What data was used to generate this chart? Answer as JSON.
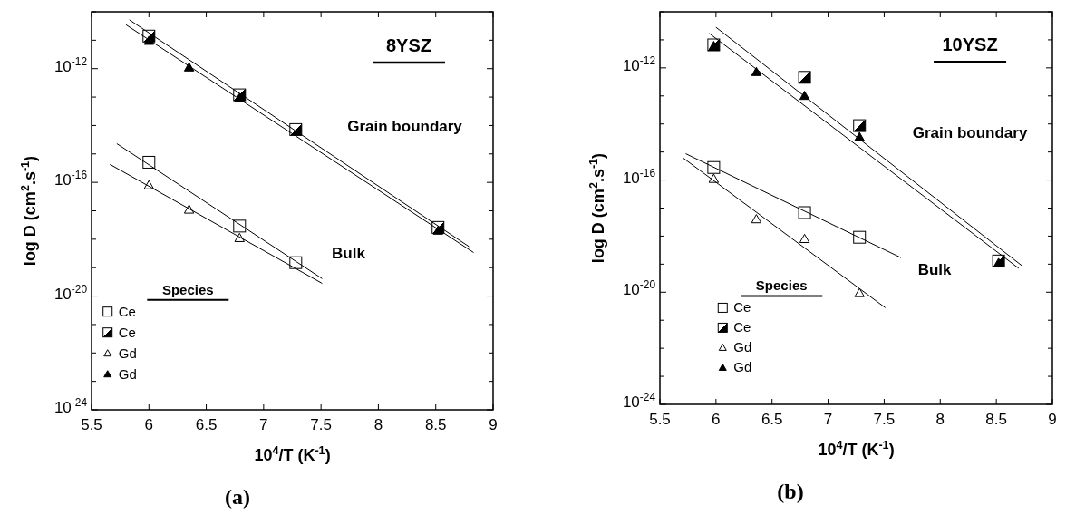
{
  "chart_data": [
    {
      "type": "scatter",
      "xlabel": "10$^{4}$/T (K$^{-1}$)",
      "ylabel": "log D (cm$^{2}$.s$^{-1}$)",
      "log": "y",
      "xlim": [
        5.5,
        9
      ],
      "xticks": [
        5.5,
        6,
        6.5,
        7,
        7.5,
        8,
        8.5,
        9
      ],
      "ylim": [
        1e-24,
        1e-10
      ],
      "yticks": [
        {
          "value": 1e-24,
          "label": "10$^{-24}$"
        },
        {
          "value": 1e-23,
          "label": null
        },
        {
          "value": 1e-22,
          "label": null
        },
        {
          "value": 1e-21,
          "label": null
        },
        {
          "value": 1e-20,
          "label": "10$^{-20}$"
        },
        {
          "value": 1e-19,
          "label": null
        },
        {
          "value": 1e-18,
          "label": null
        },
        {
          "value": 1e-17,
          "label": null
        },
        {
          "value": 1e-16,
          "label": "10$^{-16}$"
        },
        {
          "value": 1e-15,
          "label": null
        },
        {
          "value": 1e-14,
          "label": null
        },
        {
          "value": 1e-13,
          "label": null
        },
        {
          "value": 1e-12,
          "label": "10$^{-12}$"
        },
        {
          "value": 1e-11,
          "label": null
        },
        {
          "value": 1e-10,
          "label": null
        }
      ],
      "legend": "bottom left",
      "legend_title": "Species",
      "grid": false,
      "annotations": [
        "8YSZ",
        "Grain boundary",
        "Bulk",
        "(a)"
      ],
      "series": [
        {
          "name": "Ce",
          "color": "#ffffff",
          "marker": "square",
          "x": [
            6.0,
            6.79,
            7.28
          ],
          "values": [
            5.1e-16,
            2.9e-18,
            1.5e-19
          ]
        },
        {
          "name": "Ce",
          "color": "#000000",
          "marker": "square",
          "x": [
            6.0,
            6.79,
            7.28,
            8.52
          ],
          "values": [
            1.4e-11,
            1.2e-13,
            7.2e-15,
            2.6e-18
          ]
        },
        {
          "name": "Gd",
          "color": "#ffffff",
          "marker": "triangle",
          "x": [
            6.0,
            6.35,
            6.79
          ],
          "values": [
            7.9e-17,
            1.1e-17,
            1.1e-18
          ]
        },
        {
          "name": "Gd",
          "color": "#000000",
          "marker": "triangle",
          "x": [
            6.0,
            6.35,
            6.79,
            8.52
          ],
          "values": [
            9.5e-12,
            1.1e-12,
            9.3e-14,
            2e-18
          ]
        },
        {
          "type": "line",
          "color": "#000000",
          "marker": "none",
          "x": [
            5.83,
            8.79
          ],
          "values": [
            5.2e-11,
            5.5e-19
          ]
        },
        {
          "type": "line",
          "color": "#000000",
          "marker": "none",
          "x": [
            5.8,
            8.83
          ],
          "values": [
            3.5e-11,
            3.4e-19
          ]
        },
        {
          "type": "line",
          "color": "#000000",
          "marker": "none",
          "x": [
            5.72,
            7.51
          ],
          "values": [
            2.3e-15,
            4.1e-20
          ]
        },
        {
          "type": "line",
          "color": "#000000",
          "marker": "none",
          "x": [
            5.66,
            7.51
          ],
          "values": [
            4.3e-16,
            2.8e-20
          ]
        }
      ]
    },
    {
      "type": "scatter",
      "xlabel": "10$^{4}$/T (K$^{-1}$)",
      "ylabel": "log D (cm$^{2}$.s$^{-1}$)",
      "log": "y",
      "xlim": [
        5.5,
        9
      ],
      "xticks": [
        5.5,
        6,
        6.5,
        7,
        7.5,
        8,
        8.5,
        9
      ],
      "ylim": [
        1e-24,
        1e-10
      ],
      "yticks": [
        {
          "value": 1e-24,
          "label": "10$^{-24}$"
        },
        {
          "value": 1e-23,
          "label": null
        },
        {
          "value": 1e-22,
          "label": null
        },
        {
          "value": 1e-21,
          "label": null
        },
        {
          "value": 1e-20,
          "label": "10$^{-20}$"
        },
        {
          "value": 1e-19,
          "label": null
        },
        {
          "value": 1e-18,
          "label": null
        },
        {
          "value": 1e-17,
          "label": null
        },
        {
          "value": 1e-16,
          "label": "10$^{-16}$"
        },
        {
          "value": 1e-15,
          "label": null
        },
        {
          "value": 1e-14,
          "label": null
        },
        {
          "value": 1e-13,
          "label": null
        },
        {
          "value": 1e-12,
          "label": "10$^{-12}$"
        },
        {
          "value": 1e-11,
          "label": null
        },
        {
          "value": 1e-10,
          "label": null
        }
      ],
      "legend": "bottom left",
      "legend_title": "Species",
      "grid": false,
      "annotations": [
        "10YSZ",
        "Grain boundary",
        "Bulk",
        "(b)"
      ],
      "series": [
        {
          "name": "Ce",
          "color": "#ffffff",
          "marker": "square",
          "x": [
            5.98,
            6.79,
            7.28
          ],
          "values": [
            2.8e-16,
            6.9e-18,
            9.1e-19
          ]
        },
        {
          "name": "Ce",
          "color": "#000000",
          "marker": "square",
          "x": [
            5.98,
            6.79,
            7.28,
            8.52
          ],
          "values": [
            6.6e-12,
            4.6e-13,
            8.7e-15,
            1.3e-19
          ]
        },
        {
          "name": "Gd",
          "color": "#ffffff",
          "marker": "triangle",
          "x": [
            5.98,
            6.36,
            6.79,
            7.28
          ],
          "values": [
            1.1e-16,
            4e-18,
            7.9e-19,
            9.3e-21
          ]
        },
        {
          "name": "Gd",
          "color": "#000000",
          "marker": "triangle",
          "x": [
            5.98,
            6.36,
            6.79,
            7.28,
            8.52
          ],
          "values": [
            6e-12,
            7.1e-13,
            1e-13,
            3.4e-15,
            1.1e-19
          ]
        },
        {
          "type": "line",
          "color": "#000000",
          "marker": "none",
          "x": [
            6.0,
            8.73
          ],
          "values": [
            2.8e-11,
            8.7e-20
          ]
        },
        {
          "type": "line",
          "color": "#000000",
          "marker": "none",
          "x": [
            5.94,
            8.7
          ],
          "values": [
            1.7e-11,
            7.1e-20
          ]
        },
        {
          "type": "line",
          "color": "#000000",
          "marker": "none",
          "x": [
            5.73,
            7.65
          ],
          "values": [
            8.7e-16,
            1.7e-19
          ]
        },
        {
          "type": "line",
          "color": "#000000",
          "marker": "none",
          "x": [
            5.71,
            7.51
          ],
          "values": [
            6e-16,
            2.8e-21
          ]
        }
      ]
    }
  ]
}
